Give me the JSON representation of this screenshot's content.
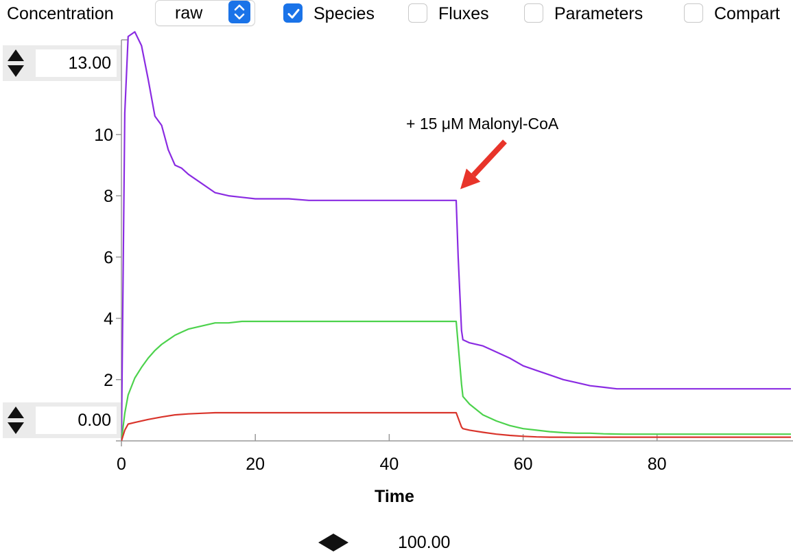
{
  "toolbar": {
    "mode_label": "Concentration",
    "scale_select": {
      "value": "raw"
    },
    "checkboxes": [
      {
        "label": "Species",
        "checked": true
      },
      {
        "label": "Fluxes",
        "checked": false
      },
      {
        "label": "Parameters",
        "checked": false
      },
      {
        "label": "Compart",
        "checked": false
      }
    ]
  },
  "y_range": {
    "max": "13.00",
    "min": "0.00"
  },
  "x_range": {
    "max": "100.00"
  },
  "chart_data": {
    "type": "line",
    "xlabel": "Time",
    "ylabel": "",
    "xlim": [
      0,
      100
    ],
    "ylim": [
      0,
      13
    ],
    "x_ticks": [
      0,
      20,
      40,
      60,
      80
    ],
    "y_ticks": [
      2,
      4,
      6,
      8,
      10
    ],
    "grid": false,
    "annotation": {
      "text": "+ 15 μM Malonyl-CoA",
      "points_to": {
        "x": 50,
        "y": 7.9
      },
      "arrow_color": "#e8342a"
    },
    "series": [
      {
        "color": "#8a2be2",
        "x": [
          0,
          0.5,
          1,
          2,
          3,
          4,
          5,
          6,
          7,
          8,
          9,
          10,
          12,
          14,
          16,
          18,
          20,
          25,
          28,
          35,
          40,
          45,
          50,
          50.3,
          50.8,
          51,
          52,
          54,
          56,
          58,
          60,
          62,
          64,
          66,
          68,
          70,
          72,
          74,
          78,
          85,
          90,
          100
        ],
        "y": [
          0,
          10.7,
          13.2,
          13.35,
          12.9,
          11.8,
          10.6,
          10.3,
          9.5,
          9.0,
          8.9,
          8.7,
          8.4,
          8.1,
          8.0,
          7.95,
          7.9,
          7.9,
          7.85,
          7.85,
          7.85,
          7.85,
          7.85,
          6.0,
          3.6,
          3.3,
          3.2,
          3.1,
          2.9,
          2.7,
          2.45,
          2.3,
          2.15,
          2.0,
          1.9,
          1.8,
          1.75,
          1.7,
          1.7,
          1.7,
          1.7,
          1.7
        ]
      },
      {
        "color": "#4cd24c",
        "x": [
          0,
          0.5,
          1,
          2,
          3,
          4,
          5,
          6,
          7,
          8,
          9,
          10,
          12,
          14,
          16,
          18,
          20,
          30,
          40,
          50,
          50.8,
          51,
          52,
          54,
          56,
          58,
          60,
          62,
          64,
          66,
          68,
          70,
          72,
          75,
          80,
          90,
          100
        ],
        "y": [
          0,
          0.9,
          1.5,
          2.05,
          2.4,
          2.7,
          2.95,
          3.15,
          3.3,
          3.45,
          3.55,
          3.65,
          3.75,
          3.85,
          3.85,
          3.9,
          3.9,
          3.9,
          3.9,
          3.9,
          1.85,
          1.45,
          1.2,
          0.85,
          0.65,
          0.5,
          0.4,
          0.35,
          0.3,
          0.27,
          0.25,
          0.25,
          0.23,
          0.22,
          0.22,
          0.22,
          0.22
        ]
      },
      {
        "color": "#d9342b",
        "x": [
          0,
          0.5,
          1,
          2,
          4,
          6,
          8,
          10,
          12,
          14,
          20,
          30,
          40,
          50,
          50.8,
          51,
          52,
          54,
          56,
          58,
          60,
          62,
          64,
          70,
          80,
          90,
          100
        ],
        "y": [
          0,
          0.35,
          0.55,
          0.6,
          0.7,
          0.78,
          0.85,
          0.88,
          0.9,
          0.92,
          0.92,
          0.92,
          0.92,
          0.92,
          0.45,
          0.4,
          0.35,
          0.28,
          0.22,
          0.18,
          0.15,
          0.13,
          0.12,
          0.12,
          0.12,
          0.12,
          0.12
        ]
      }
    ]
  }
}
